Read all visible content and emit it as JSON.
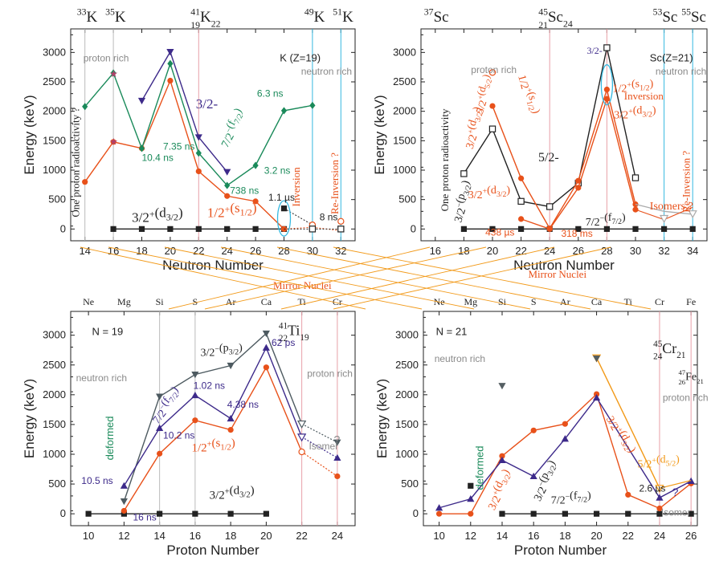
{
  "chart_data": [
    {
      "type": "line",
      "panel": "top-left",
      "xlabel": "Neutron Number",
      "ylabel": "Energy (keV)",
      "xlim": [
        13,
        33
      ],
      "ylim": [
        -200,
        3400
      ],
      "xticks": [
        14,
        16,
        18,
        20,
        22,
        24,
        26,
        28,
        30,
        32
      ],
      "yticks": [
        0,
        500,
        1000,
        1500,
        2000,
        2500,
        3000
      ],
      "top_labels": [
        {
          "x": 14,
          "mass": "33",
          "sym": "K",
          "z": "",
          "n": ""
        },
        {
          "x": 16,
          "mass": "35",
          "sym": "K",
          "z": "",
          "n": ""
        },
        {
          "x": 22,
          "mass": "41",
          "sym": "K",
          "z": "19",
          "n": "22"
        },
        {
          "x": 30,
          "mass": "49",
          "sym": "K",
          "z": "",
          "n": ""
        },
        {
          "x": 32,
          "mass": "51",
          "sym": "K",
          "z": "",
          "n": ""
        }
      ],
      "series": [
        {
          "name": "3/2+(d3/2)",
          "color": "#222222",
          "marker": "square",
          "x": [
            16,
            18,
            20,
            22,
            24,
            26,
            28
          ],
          "y": [
            0,
            0,
            0,
            0,
            0,
            0,
            0
          ]
        },
        {
          "name": "1/2+(s1/2)",
          "color": "#e8511a",
          "marker": "circle",
          "x": [
            14,
            16,
            18,
            20,
            22,
            24,
            26,
            28
          ],
          "y": [
            800,
            1480,
            1370,
            2520,
            980,
            560,
            470,
            0
          ]
        },
        {
          "name": "7/2-(f7/2)",
          "color": "#1a8a5a",
          "marker": "diamond",
          "x": [
            14,
            16,
            18,
            20,
            22,
            24,
            26,
            28,
            30
          ],
          "y": [
            2080,
            2650,
            1370,
            2810,
            1290,
            740,
            1080,
            2010,
            2100
          ]
        },
        {
          "name": "3/2-",
          "color": "#3d2a8a",
          "marker": "down-triangle",
          "x": [
            18,
            20,
            22,
            24
          ],
          "y": [
            2180,
            3010,
            1560,
            970
          ]
        }
      ],
      "labels": {
        "proton": "proton rich",
        "neutron": "neutron rich",
        "element": "K (Z=19)",
        "side": "One proton radioactivity ?",
        "inversion": "Inversion",
        "reinversion": "Re-Inversion ?",
        "d32": "3/2+(d3/2)",
        "s12": "1/2+(s1/2)",
        "f72": "7/2-(f7/2)",
        "p32": "3/2-"
      },
      "annotations": [
        "10.4 ns",
        "7.35 ns",
        "6.3 ns",
        "738 ns",
        "3.2 ns",
        "1.1 µs",
        "8 ns"
      ]
    },
    {
      "type": "line",
      "panel": "top-right",
      "xlabel": "Neutron Number",
      "ylabel": "Energy (keV)",
      "xlim": [
        15,
        35
      ],
      "ylim": [
        -200,
        3400
      ],
      "xticks": [
        16,
        18,
        20,
        22,
        24,
        26,
        28,
        30,
        32,
        34
      ],
      "yticks": [
        0,
        500,
        1000,
        1500,
        2000,
        2500,
        3000
      ],
      "top_labels": [
        {
          "x": 16,
          "mass": "37",
          "sym": "Sc",
          "z": "",
          "n": ""
        },
        {
          "x": 24,
          "mass": "45",
          "sym": "Sc",
          "z": "21",
          "n": "24"
        },
        {
          "x": 32,
          "mass": "53",
          "sym": "Sc",
          "z": "",
          "n": ""
        },
        {
          "x": 34,
          "mass": "55",
          "sym": "Sc",
          "z": "",
          "n": ""
        }
      ],
      "series": [
        {
          "name": "7/2-(f7/2)",
          "color": "#222222",
          "marker": "square",
          "x": [
            18,
            20,
            22,
            24,
            26,
            28,
            30,
            32,
            34
          ],
          "y": [
            0,
            0,
            0,
            0,
            0,
            0,
            0,
            0,
            0
          ]
        },
        {
          "name": "3/2-(p3/2)",
          "color": "#222222",
          "marker": "open-square",
          "x": [
            18,
            20,
            22,
            24,
            26,
            28,
            30
          ],
          "y": [
            940,
            1700,
            470,
            380,
            780,
            3080,
            870
          ]
        },
        {
          "name": "1/2+(s1/2)",
          "color": "#e8511a",
          "marker": "circle",
          "x": [
            20,
            22,
            24,
            26,
            28,
            30
          ],
          "y": [
            2090,
            860,
            10,
            820,
            2370,
            420
          ]
        },
        {
          "name": "3/2+(d3/2)",
          "color": "#e8511a",
          "marker": "circle",
          "x": [
            22,
            24,
            26,
            28,
            30
          ],
          "y": [
            170,
            0,
            700,
            2210,
            330
          ]
        },
        {
          "name": "5/2+(d5/2)",
          "color": "#e8511a",
          "marker": "open-circle",
          "x": [
            20
          ],
          "y": [
            2660
          ]
        }
      ],
      "labels": {
        "proton": "proton rich",
        "neutron": "neutron rich",
        "element": "Sc(Z=21)",
        "side": "One proton radioactivity",
        "inversion": "Inversion",
        "reinversion": "Re-Inversion ?",
        "isomers": "Isomers ?",
        "p32": "3/2-(p3/2)",
        "s12": "1/2+(s1/2)",
        "d32": "3/2+(d3/2)",
        "d52": "5/2+(d5/2)",
        "f72": "7/2-(f7/2)",
        "m52": "5/2-",
        "m32": "3/2-",
        "s12b": "1/2+(s1/2)",
        "d32b": "3/2+(d3/2)"
      },
      "annotations": [
        "438 µs",
        "318 ms"
      ]
    },
    {
      "type": "line",
      "panel": "bottom-left",
      "xlabel": "Proton Number",
      "ylabel": "Energy (keV)",
      "xlim": [
        9,
        25
      ],
      "ylim": [
        -200,
        3400
      ],
      "xticks": [
        10,
        12,
        14,
        16,
        18,
        20,
        22,
        24
      ],
      "yticks": [
        0,
        500,
        1000,
        1500,
        2000,
        2500,
        3000
      ],
      "elements": [
        "Ne",
        "Mg",
        "Si",
        "S",
        "Ar",
        "Ca",
        "Ti",
        "Cr"
      ],
      "series": [
        {
          "name": "3/2+(d3/2)",
          "color": "#222222",
          "marker": "square",
          "x": [
            10,
            12,
            14,
            16,
            18,
            20
          ],
          "y": [
            0,
            0,
            0,
            0,
            0,
            0
          ]
        },
        {
          "name": "1/2+(s1/2)",
          "color": "#e8511a",
          "marker": "circle",
          "x": [
            12,
            14,
            16,
            18,
            20,
            22,
            24
          ],
          "y": [
            50,
            1010,
            1570,
            1410,
            2460,
            1040,
            630
          ]
        },
        {
          "name": "3/2-(p3/2)",
          "color": "#4d5a60",
          "marker": "down-triangle",
          "x": [
            12,
            14,
            16,
            18,
            20,
            22,
            24
          ],
          "y": [
            210,
            1970,
            2340,
            2490,
            3030,
            1510,
            1200
          ]
        },
        {
          "name": "7/2-(f7/2)",
          "color": "#3d2a8a",
          "marker": "up-triangle",
          "x": [
            12,
            14,
            16,
            18,
            20,
            22,
            24
          ],
          "y": [
            470,
            1440,
            1990,
            1600,
            2790,
            1290,
            940
          ]
        }
      ],
      "labels": {
        "n": "N = 19",
        "nucleus_mass": "41",
        "nucleus_z": "22",
        "nucleus_sym": "Ti",
        "nucleus_n": "19",
        "neutron": "neutron rich",
        "proton": "proton rich",
        "deformed": "deformed",
        "isomer": "Isomer",
        "mirror": "Mirror Nuclei",
        "p32": "3/2-(p3/2)",
        "f72": "7/2-(f7/2)",
        "s12": "1/2+(s1/2)",
        "d32": "3/2+(d3/2)",
        "q": "?"
      },
      "annotations": [
        "10.5 ns",
        "16 ns",
        "10.2 ns",
        "1.02 ns",
        "4.38 ns",
        "62 ps"
      ]
    },
    {
      "type": "line",
      "panel": "bottom-right",
      "xlabel": "Proton Number",
      "ylabel": "Energy (keV)",
      "xlim": [
        9,
        26.4
      ],
      "ylim": [
        -200,
        3400
      ],
      "xticks": [
        10,
        12,
        14,
        16,
        18,
        20,
        22,
        24,
        26
      ],
      "yticks": [
        0,
        500,
        1000,
        1500,
        2000,
        2500,
        3000
      ],
      "elements": [
        "Ne",
        "Mg",
        "Si",
        "S",
        "Ar",
        "Ca",
        "Ti",
        "Cr",
        "Fe"
      ],
      "series": [
        {
          "name": "7/2-(f7/2)",
          "color": "#222222",
          "marker": "square",
          "x": [
            14,
            16,
            18,
            20,
            22,
            24,
            26
          ],
          "y": [
            0,
            0,
            0,
            0,
            0,
            0,
            0
          ]
        },
        {
          "name": "3/2+(d3/2)",
          "color": "#e8511a",
          "marker": "circle",
          "x": [
            10,
            12,
            14,
            16,
            18,
            20,
            22,
            24,
            26
          ],
          "y": [
            0,
            0,
            970,
            1400,
            1510,
            2010,
            320,
            90,
            510
          ]
        },
        {
          "name": "3/2-(p3/2)",
          "color": "#3d2a8a",
          "marker": "up-triangle",
          "x": [
            10,
            12,
            14,
            16,
            18,
            20,
            24,
            26
          ],
          "y": [
            100,
            250,
            900,
            630,
            1260,
            1950,
            270,
            550
          ]
        },
        {
          "name": "5/2+(d5/2)",
          "color": "#f29a1a",
          "marker": "open-triangle",
          "x": [
            20,
            24
          ],
          "y": [
            2620,
            430
          ]
        }
      ],
      "extra_points": [
        {
          "x": 12,
          "y": 470,
          "color": "#222222"
        },
        {
          "x": 14,
          "y": 2150,
          "color": "#555f63"
        },
        {
          "x": 20,
          "y": 2610,
          "color": "#555f63"
        }
      ],
      "labels": {
        "n": "N = 21",
        "nucleus_mass": "45",
        "nucleus_z": "24",
        "nucleus_sym": "Cr",
        "nucleus_n": "21",
        "nucleus2_mass": "47",
        "nucleus2_z": "26",
        "nucleus2_sym": "Fe",
        "nucleus2_n": "21",
        "neutron": "neutron rich",
        "proton": "proton rich",
        "deformed": "deformed",
        "isomer": "Isomer",
        "mirror": "Mirror Nuclei",
        "d32": "3/2+(d3/2)",
        "p32": "3/2-(p3/2)",
        "d32b": "3/2+(d3/2)",
        "d52": "5/2+(d5/2)",
        "f72": "7/2-(f7/2)",
        "q": "?"
      },
      "annotations": [
        "2.6 µs"
      ]
    }
  ],
  "colors": {
    "black": "#222222",
    "orange": "#e8511a",
    "green": "#1a8a5a",
    "purple": "#3d2a8a",
    "gray": "#8a8a8a",
    "pink": "#e8a0a8",
    "cyan": "#35b8e0",
    "mirror_line": "#f29a1a",
    "reinv_text": "#e8511a"
  }
}
